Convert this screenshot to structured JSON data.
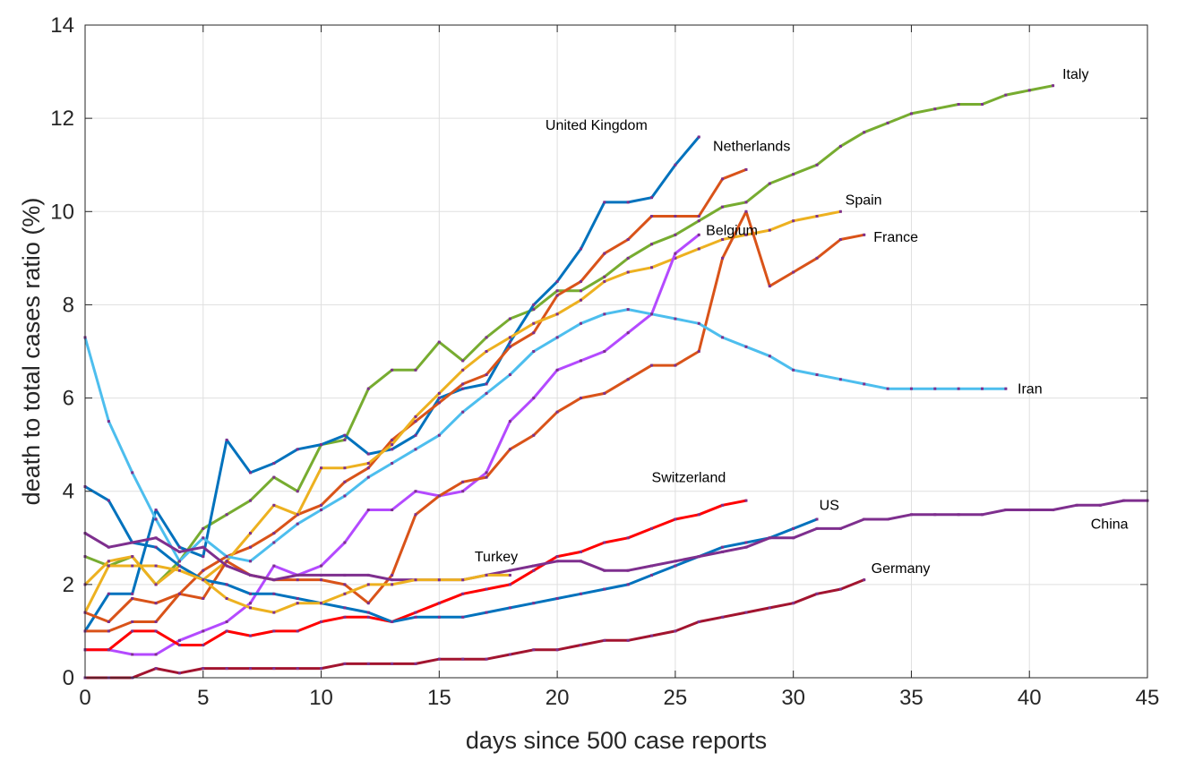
{
  "chart_data": {
    "type": "line",
    "title": "",
    "xlabel": "days since 500 case reports",
    "ylabel": "death to total cases ratio (%)",
    "xlim": [
      0,
      45
    ],
    "ylim": [
      0,
      14
    ],
    "xticks": [
      0,
      5,
      10,
      15,
      20,
      25,
      30,
      35,
      40,
      45
    ],
    "yticks": [
      0,
      2,
      4,
      6,
      8,
      10,
      12,
      14
    ],
    "grid": true,
    "legend": "none (series labelled directly at line ends)",
    "series": [
      {
        "name": "Italy",
        "color": "#77AC30",
        "x": [
          0,
          1,
          2,
          3,
          4,
          5,
          6,
          7,
          8,
          9,
          10,
          11,
          12,
          13,
          14,
          15,
          16,
          17,
          18,
          19,
          20,
          21,
          22,
          23,
          24,
          25,
          26,
          27,
          28,
          29,
          30,
          31,
          32,
          33,
          34,
          35,
          36,
          37,
          38,
          39,
          40,
          41
        ],
        "y": [
          2.6,
          2.4,
          2.6,
          2.0,
          2.5,
          3.2,
          3.5,
          3.8,
          4.3,
          4.0,
          5.0,
          5.1,
          6.2,
          6.6,
          6.6,
          7.2,
          6.8,
          7.3,
          7.7,
          7.9,
          8.3,
          8.3,
          8.6,
          9.0,
          9.3,
          9.5,
          9.8,
          10.1,
          10.2,
          10.6,
          10.8,
          11.0,
          11.4,
          11.7,
          11.9,
          12.1,
          12.2,
          12.3,
          12.3,
          12.5,
          12.6,
          12.7
        ],
        "label_xy": [
          41.4,
          12.85
        ]
      },
      {
        "name": "United Kingdom",
        "color": "#0072BD",
        "x": [
          0,
          1,
          2,
          3,
          4,
          5,
          6,
          7,
          8,
          9,
          10,
          11,
          12,
          13,
          14,
          15,
          16,
          17,
          18,
          19,
          20,
          21,
          22,
          23,
          24,
          25,
          26
        ],
        "y": [
          1.0,
          1.8,
          1.8,
          3.6,
          2.8,
          2.6,
          5.1,
          4.4,
          4.6,
          4.9,
          5.0,
          5.2,
          4.8,
          4.9,
          5.2,
          6.0,
          6.2,
          6.3,
          7.2,
          8.0,
          8.5,
          9.2,
          10.2,
          10.2,
          10.3,
          11.0,
          11.6
        ],
        "label_xy": [
          19.5,
          11.75
        ]
      },
      {
        "name": "Netherlands",
        "color": "#D95319",
        "x": [
          0,
          1,
          2,
          3,
          4,
          5,
          6,
          7,
          8,
          9,
          10,
          11,
          12,
          13,
          14,
          15,
          16,
          17,
          18,
          19,
          20,
          21,
          22,
          23,
          24,
          25,
          26,
          27,
          28
        ],
        "y": [
          1.0,
          1.0,
          1.2,
          1.2,
          1.8,
          2.3,
          2.6,
          2.8,
          3.1,
          3.5,
          3.7,
          4.2,
          4.5,
          5.1,
          5.5,
          5.9,
          6.3,
          6.5,
          7.1,
          7.4,
          8.2,
          8.5,
          9.1,
          9.4,
          9.9,
          9.9,
          9.9,
          10.7,
          10.9
        ],
        "label_xy": [
          26.6,
          11.3
        ]
      },
      {
        "name": "Spain",
        "color": "#EDB120",
        "x": [
          0,
          1,
          2,
          3,
          4,
          5,
          6,
          7,
          8,
          9,
          10,
          11,
          12,
          13,
          14,
          15,
          16,
          17,
          18,
          19,
          20,
          21,
          22,
          23,
          24,
          25,
          26,
          27,
          28,
          29,
          30,
          31,
          32
        ],
        "y": [
          2.0,
          2.5,
          2.6,
          2.0,
          2.4,
          2.1,
          2.5,
          3.1,
          3.7,
          3.5,
          4.5,
          4.5,
          4.6,
          5.0,
          5.6,
          6.1,
          6.6,
          7.0,
          7.3,
          7.6,
          7.8,
          8.1,
          8.5,
          8.7,
          8.8,
          9.0,
          9.2,
          9.4,
          9.5,
          9.6,
          9.8,
          9.9,
          10.0
        ],
        "label_xy": [
          32.2,
          10.15
        ]
      },
      {
        "name": "Belgium",
        "color": "#B44AFF",
        "x": [
          0,
          1,
          2,
          3,
          4,
          5,
          6,
          7,
          8,
          9,
          10,
          11,
          12,
          13,
          14,
          15,
          16,
          17,
          18,
          19,
          20,
          21,
          22,
          23,
          24,
          25,
          26
        ],
        "y": [
          0.6,
          0.6,
          0.5,
          0.5,
          0.8,
          1.0,
          1.2,
          1.6,
          2.4,
          2.2,
          2.4,
          2.9,
          3.6,
          3.6,
          4.0,
          3.9,
          4.0,
          4.4,
          5.5,
          6.0,
          6.6,
          6.8,
          7.0,
          7.4,
          7.8,
          9.1,
          9.5
        ],
        "label_xy": [
          26.3,
          9.5
        ]
      },
      {
        "name": "France",
        "color": "#D95319",
        "x": [
          0,
          1,
          2,
          3,
          4,
          5,
          6,
          7,
          8,
          9,
          10,
          11,
          12,
          13,
          14,
          15,
          16,
          17,
          18,
          19,
          20,
          21,
          22,
          23,
          24,
          25,
          26,
          27,
          28,
          29,
          30,
          31,
          32,
          33
        ],
        "y": [
          1.4,
          1.2,
          1.7,
          1.6,
          1.8,
          1.7,
          2.5,
          2.2,
          2.1,
          2.1,
          2.1,
          2.0,
          1.6,
          2.2,
          3.5,
          3.9,
          4.2,
          4.3,
          4.9,
          5.2,
          5.7,
          6.0,
          6.1,
          6.4,
          6.7,
          6.7,
          7.0,
          9.0,
          10.0,
          8.4,
          8.7,
          9.0,
          9.4,
          9.5
        ],
        "label_xy": [
          33.4,
          9.35
        ]
      },
      {
        "name": "Iran",
        "color": "#4DBEEE",
        "x": [
          0,
          1,
          2,
          3,
          4,
          5,
          6,
          7,
          8,
          9,
          10,
          11,
          12,
          13,
          14,
          15,
          16,
          17,
          18,
          19,
          20,
          21,
          22,
          23,
          24,
          25,
          26,
          27,
          28,
          29,
          30,
          31,
          32,
          33,
          34,
          35,
          36,
          37,
          38,
          39
        ],
        "y": [
          7.3,
          5.5,
          4.4,
          3.4,
          2.5,
          3.0,
          2.6,
          2.5,
          2.9,
          3.3,
          3.6,
          3.9,
          4.3,
          4.6,
          4.9,
          5.2,
          5.7,
          6.1,
          6.5,
          7.0,
          7.3,
          7.6,
          7.8,
          7.9,
          7.8,
          7.7,
          7.6,
          7.3,
          7.1,
          6.9,
          6.6,
          6.5,
          6.4,
          6.3,
          6.2,
          6.2,
          6.2,
          6.2,
          6.2,
          6.2
        ],
        "label_xy": [
          39.5,
          6.1
        ]
      },
      {
        "name": "Switzerland",
        "color": "#FF0000",
        "x": [
          0,
          1,
          2,
          3,
          4,
          5,
          6,
          7,
          8,
          9,
          10,
          11,
          12,
          13,
          14,
          15,
          16,
          17,
          18,
          19,
          20,
          21,
          22,
          23,
          24,
          25,
          26,
          27,
          28
        ],
        "y": [
          0.6,
          0.6,
          1.0,
          1.0,
          0.7,
          0.7,
          1.0,
          0.9,
          1.0,
          1.0,
          1.2,
          1.3,
          1.3,
          1.2,
          1.4,
          1.6,
          1.8,
          1.9,
          2.0,
          2.3,
          2.6,
          2.7,
          2.9,
          3.0,
          3.2,
          3.4,
          3.5,
          3.7,
          3.8
        ],
        "label_xy": [
          24.0,
          4.2
        ]
      },
      {
        "name": "US",
        "color": "#0072BD",
        "x": [
          0,
          1,
          2,
          3,
          4,
          5,
          6,
          7,
          8,
          9,
          10,
          11,
          12,
          13,
          14,
          15,
          16,
          17,
          18,
          19,
          20,
          21,
          22,
          23,
          24,
          25,
          26,
          27,
          28,
          29,
          30,
          31
        ],
        "y": [
          4.1,
          3.8,
          2.9,
          2.8,
          2.4,
          2.1,
          2.0,
          1.8,
          1.8,
          1.7,
          1.6,
          1.5,
          1.4,
          1.2,
          1.3,
          1.3,
          1.3,
          1.4,
          1.5,
          1.6,
          1.7,
          1.8,
          1.9,
          2.0,
          2.2,
          2.4,
          2.6,
          2.8,
          2.9,
          3.0,
          3.2,
          3.4
        ],
        "label_xy": [
          31.1,
          3.6
        ]
      },
      {
        "name": "China",
        "color": "#7E2F8E",
        "x": [
          0,
          1,
          2,
          3,
          4,
          5,
          6,
          7,
          8,
          9,
          10,
          11,
          12,
          13,
          14,
          15,
          16,
          17,
          18,
          19,
          20,
          21,
          22,
          23,
          24,
          25,
          26,
          27,
          28,
          29,
          30,
          31,
          32,
          33,
          34,
          35,
          36,
          37,
          38,
          39,
          40,
          41,
          42,
          43,
          44,
          45
        ],
        "y": [
          3.1,
          2.8,
          2.9,
          3.0,
          2.7,
          2.8,
          2.4,
          2.2,
          2.1,
          2.2,
          2.2,
          2.2,
          2.2,
          2.1,
          2.1,
          2.1,
          2.1,
          2.2,
          2.3,
          2.4,
          2.5,
          2.5,
          2.3,
          2.3,
          2.4,
          2.5,
          2.6,
          2.7,
          2.8,
          3.0,
          3.0,
          3.2,
          3.2,
          3.4,
          3.4,
          3.5,
          3.5,
          3.5,
          3.5,
          3.6,
          3.6,
          3.6,
          3.7,
          3.7,
          3.8,
          3.8
        ],
        "label_xy": [
          42.6,
          3.2
        ]
      },
      {
        "name": "Turkey",
        "color": "#EDB120",
        "x": [
          0,
          1,
          2,
          3,
          4,
          5,
          6,
          7,
          8,
          9,
          10,
          11,
          12,
          13,
          14,
          15,
          16,
          17,
          18
        ],
        "y": [
          1.4,
          2.4,
          2.4,
          2.4,
          2.3,
          2.1,
          1.7,
          1.5,
          1.4,
          1.6,
          1.6,
          1.8,
          2.0,
          2.0,
          2.1,
          2.1,
          2.1,
          2.2,
          2.2
        ],
        "label_xy": [
          16.5,
          2.5
        ]
      },
      {
        "name": "Germany",
        "color": "#A2142F",
        "x": [
          0,
          1,
          2,
          3,
          4,
          5,
          6,
          7,
          8,
          9,
          10,
          11,
          12,
          13,
          14,
          15,
          16,
          17,
          18,
          19,
          20,
          21,
          22,
          23,
          24,
          25,
          26,
          27,
          28,
          29,
          30,
          31,
          32,
          33
        ],
        "y": [
          0.0,
          0.0,
          0.0,
          0.2,
          0.1,
          0.2,
          0.2,
          0.2,
          0.2,
          0.2,
          0.2,
          0.3,
          0.3,
          0.3,
          0.3,
          0.4,
          0.4,
          0.4,
          0.5,
          0.6,
          0.6,
          0.7,
          0.8,
          0.8,
          0.9,
          1.0,
          1.2,
          1.3,
          1.4,
          1.5,
          1.6,
          1.8,
          1.9,
          2.1
        ],
        "label_xy": [
          33.3,
          2.25
        ]
      }
    ]
  }
}
